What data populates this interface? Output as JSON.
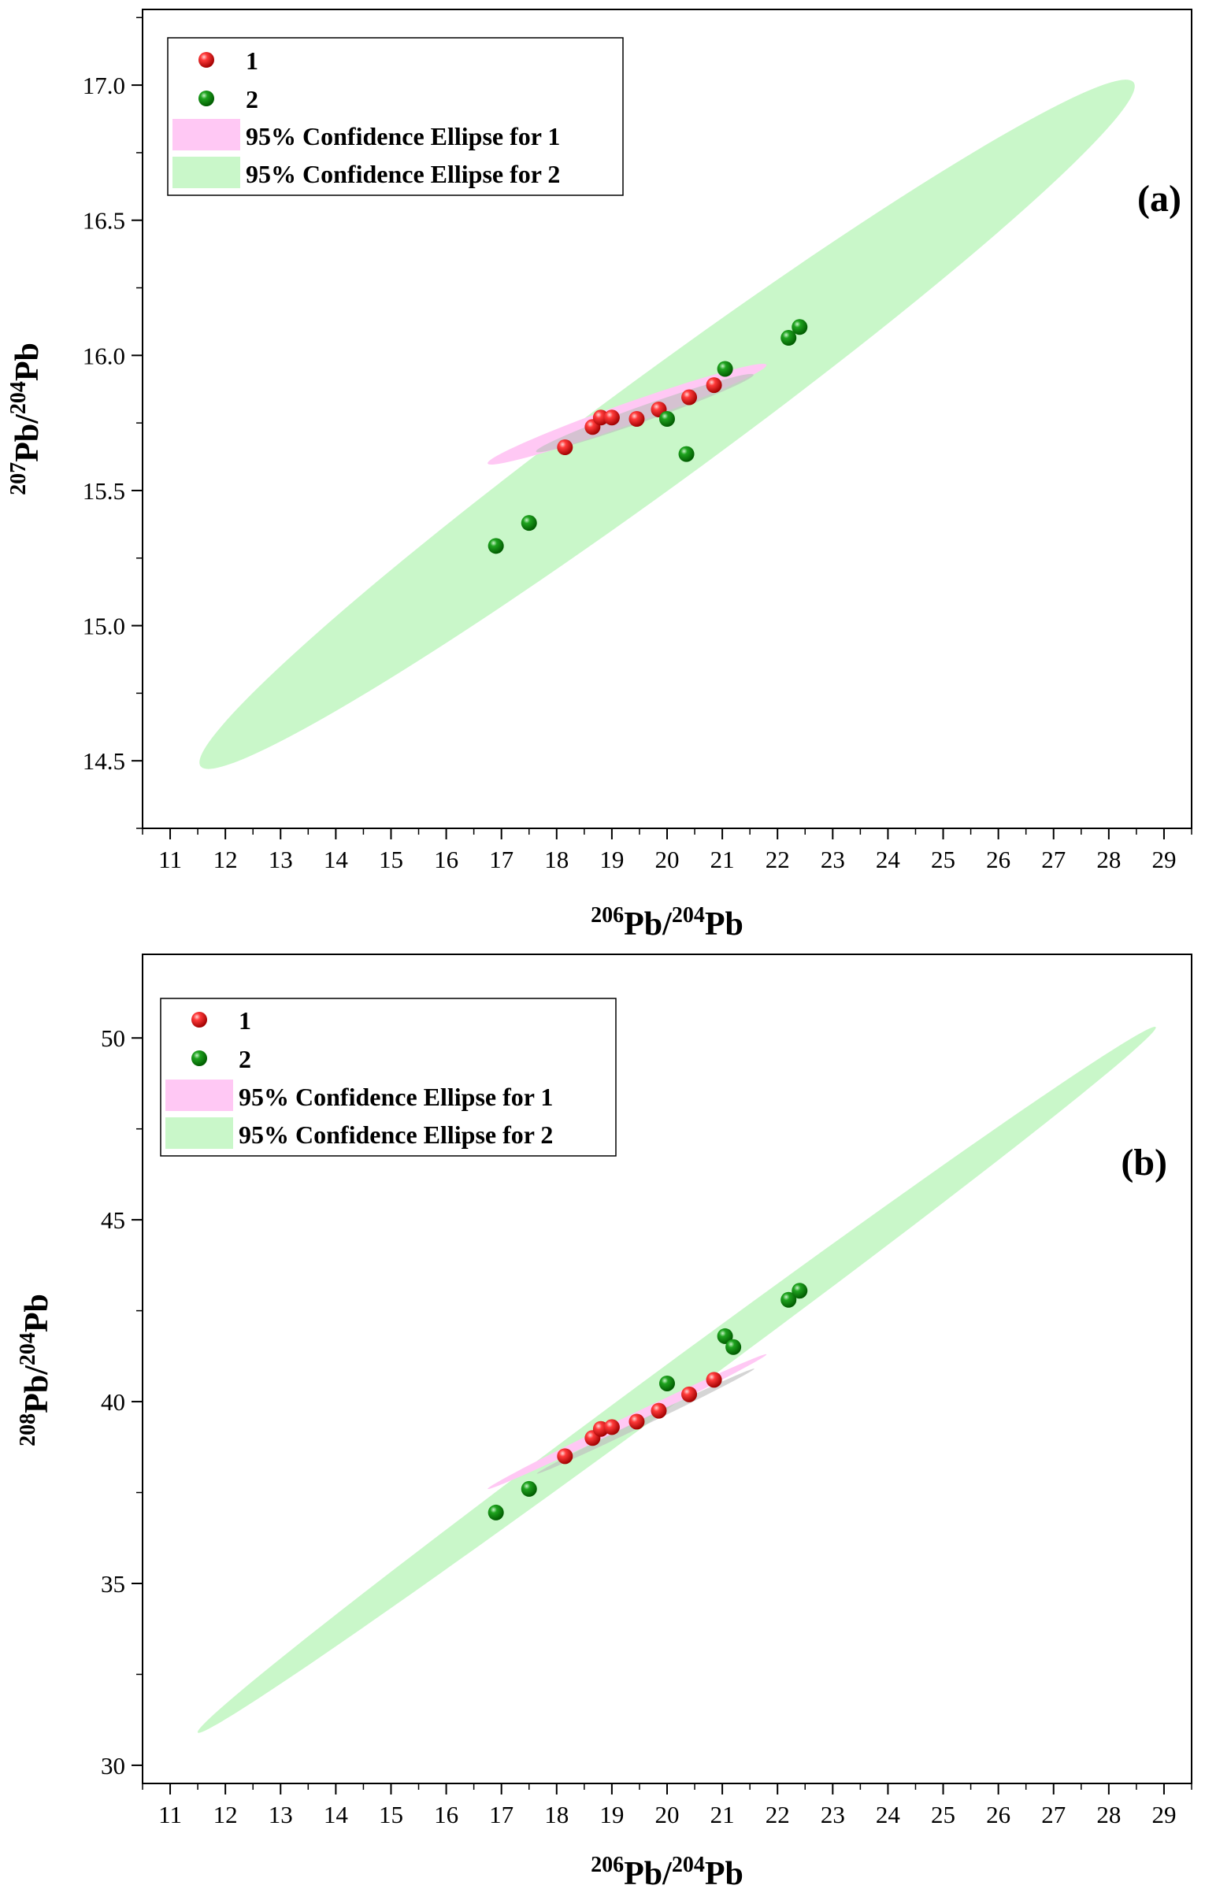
{
  "colors": {
    "group1": "#e01010",
    "group2": "#108a10",
    "ellipse1": "#ffc8f4",
    "ellipse2": "#c9f7c9",
    "overlap": "#bfbfbf"
  },
  "chart_data": [
    {
      "type": "scatter",
      "panel_label": "(a)",
      "title": "",
      "xlabel": {
        "main": "Pb/",
        "sup1": "206",
        "sup2": "204",
        "tail": "Pb"
      },
      "ylabel": {
        "main": "Pb/",
        "sup1": "207",
        "sup2": "204",
        "tail": "Pb"
      },
      "xlim": [
        10.5,
        29.5
      ],
      "ylim": [
        14.25,
        17.28
      ],
      "xticks": [
        "11",
        "12",
        "13",
        "14",
        "15",
        "16",
        "17",
        "18",
        "19",
        "20",
        "21",
        "22",
        "23",
        "24",
        "25",
        "26",
        "27",
        "28",
        "29"
      ],
      "yticks": [
        "14.5",
        "15.0",
        "15.5",
        "16.0",
        "16.5",
        "17.0"
      ],
      "legend": {
        "location": "top-left",
        "entries": [
          "1",
          "2",
          "95% Confidence Ellipse for 1",
          "95% Confidence Ellipse for 2"
        ]
      },
      "series": [
        {
          "name": "1",
          "points": [
            [
              18.15,
              15.66
            ],
            [
              18.65,
              15.735
            ],
            [
              18.8,
              15.77
            ],
            [
              19.0,
              15.77
            ],
            [
              19.45,
              15.765
            ],
            [
              19.85,
              15.8
            ],
            [
              20.4,
              15.845
            ],
            [
              20.85,
              15.89
            ]
          ]
        },
        {
          "name": "2",
          "points": [
            [
              16.9,
              15.295
            ],
            [
              17.5,
              15.38
            ],
            [
              20.0,
              15.765
            ],
            [
              20.35,
              15.635
            ],
            [
              21.05,
              15.95
            ],
            [
              22.2,
              16.065
            ],
            [
              22.4,
              16.105
            ]
          ]
        }
      ],
      "ellipses": [
        {
          "name": "95% Confidence Ellipse for 1",
          "endpoints": [
            [
              16.75,
              15.6
            ],
            [
              21.8,
              15.965
            ]
          ],
          "minor_half_width": 0.04
        },
        {
          "name": "95% Confidence Ellipse for 2",
          "endpoints": [
            [
              11.55,
              14.48
            ],
            [
              28.45,
              17.01
            ]
          ],
          "minor_half_width": 0.2
        }
      ]
    },
    {
      "type": "scatter",
      "panel_label": "(b)",
      "title": "",
      "xlabel": {
        "main": "Pb/",
        "sup1": "206",
        "sup2": "204",
        "tail": "Pb"
      },
      "ylabel": {
        "main": "Pb/",
        "sup1": "208",
        "sup2": "204",
        "tail": "Pb"
      },
      "xlim": [
        10.5,
        29.5
      ],
      "ylim": [
        29.5,
        52.3
      ],
      "xticks": [
        "11",
        "12",
        "13",
        "14",
        "15",
        "16",
        "17",
        "18",
        "19",
        "20",
        "21",
        "22",
        "23",
        "24",
        "25",
        "26",
        "27",
        "28",
        "29"
      ],
      "yticks": [
        "30",
        "35",
        "40",
        "45",
        "50"
      ],
      "legend": {
        "location": "top-left",
        "entries": [
          "1",
          "2",
          "95% Confidence Ellipse for 1",
          "95% Confidence Ellipse for 2"
        ]
      },
      "series": [
        {
          "name": "1",
          "points": [
            [
              18.15,
              38.5
            ],
            [
              18.65,
              39.0
            ],
            [
              18.8,
              39.25
            ],
            [
              19.0,
              39.3
            ],
            [
              19.45,
              39.45
            ],
            [
              19.85,
              39.75
            ],
            [
              20.4,
              40.2
            ],
            [
              20.85,
              40.6
            ]
          ]
        },
        {
          "name": "2",
          "points": [
            [
              16.9,
              36.95
            ],
            [
              17.5,
              37.6
            ],
            [
              20.0,
              40.5
            ],
            [
              21.05,
              41.8
            ],
            [
              21.2,
              41.5
            ],
            [
              22.2,
              42.8
            ],
            [
              22.4,
              43.05
            ]
          ]
        }
      ],
      "ellipses": [
        {
          "name": "95% Confidence Ellipse for 1",
          "endpoints": [
            [
              16.75,
              37.6
            ],
            [
              21.8,
              41.3
            ]
          ],
          "minor_half_width": 0.1
        },
        {
          "name": "95% Confidence Ellipse for 2",
          "endpoints": [
            [
              11.5,
              30.9
            ],
            [
              28.85,
              50.3
            ]
          ],
          "minor_half_width": 0.5
        }
      ]
    }
  ]
}
